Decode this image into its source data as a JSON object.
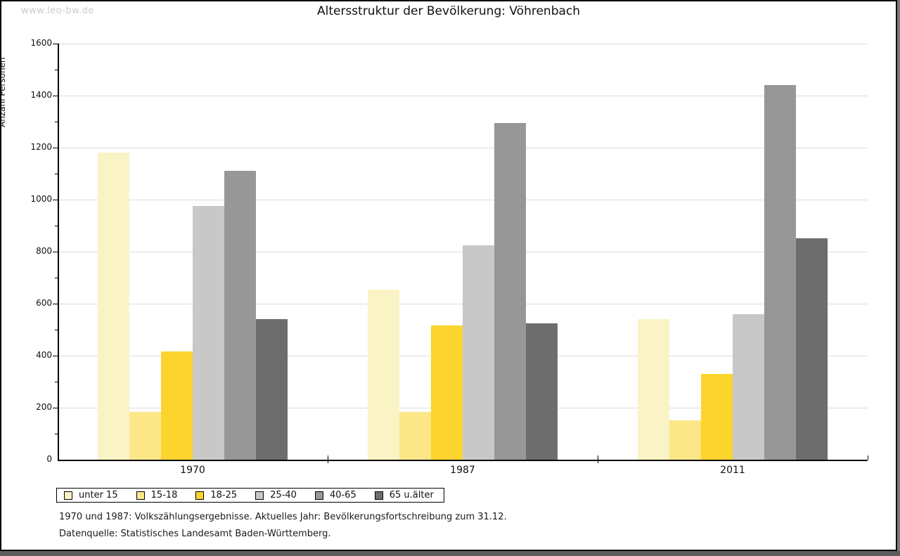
{
  "watermark": "www.leo-bw.de",
  "chart_title": "Altersstruktur der Bevölkerung: Vöhrenbach",
  "chart_data": {
    "type": "bar",
    "title": "Altersstruktur der Bevölkerung: Vöhrenbach",
    "xlabel": "",
    "ylabel": "Anzahl Personen",
    "ylim": [
      0,
      1600
    ],
    "ytick_step": 200,
    "yminor_step": 100,
    "grid": "horizontal",
    "gridline_color": "#dbdbdb",
    "legend_position": "bottom-left",
    "categories": [
      "1970",
      "1987",
      "2011"
    ],
    "series": [
      {
        "name": "unter 15",
        "color": "#faf3c5",
        "values": [
          1180,
          655,
          540
        ]
      },
      {
        "name": "15-18",
        "color": "#fce788",
        "values": [
          185,
          185,
          150
        ]
      },
      {
        "name": "18-25",
        "color": "#fcd42e",
        "values": [
          415,
          515,
          330
        ]
      },
      {
        "name": "25-40",
        "color": "#c8c8c8",
        "values": [
          975,
          825,
          560
        ]
      },
      {
        "name": "40-65",
        "color": "#979797",
        "values": [
          1110,
          1295,
          1440
        ]
      },
      {
        "name": "65 u.älter",
        "color": "#6d6d6d",
        "values": [
          540,
          525,
          850
        ]
      }
    ]
  },
  "footnotes": {
    "line1": "1970 und 1987: Volkszählungsergebnisse. Aktuelles Jahr: Bevölkerungsfortschreibung zum 31.12.",
    "line2": "Datenquelle: Statistisches Landesamt Baden-Württemberg."
  }
}
